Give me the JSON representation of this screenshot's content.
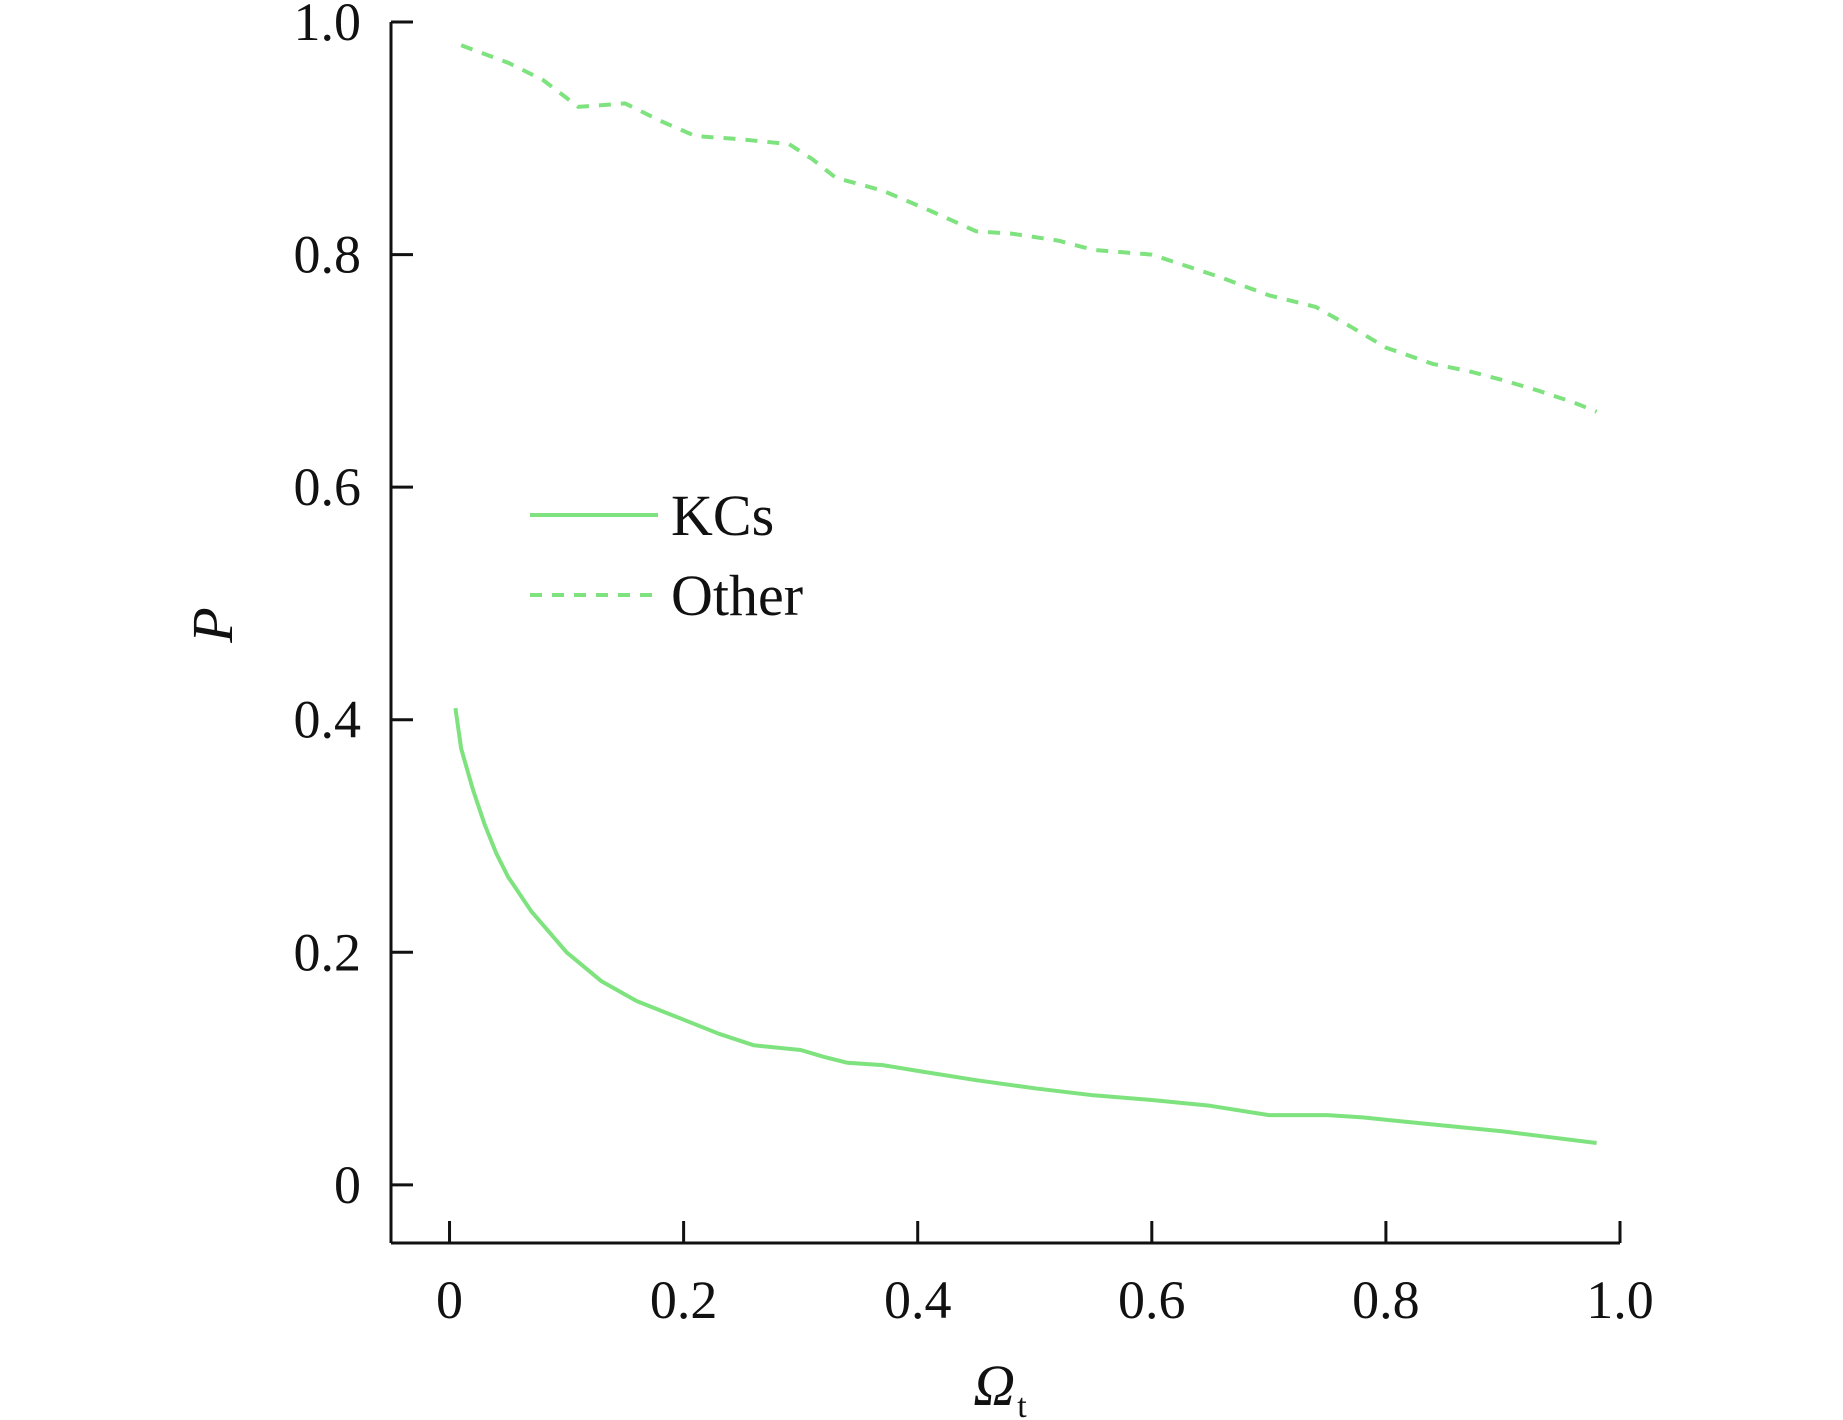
{
  "chart_data": {
    "type": "line",
    "title": "",
    "xlabel": "Ω",
    "xlabel_subscript": "t",
    "ylabel": "P",
    "xlim": [
      -0.05,
      1.0
    ],
    "ylim": [
      -0.05,
      1.0
    ],
    "x_ticks": [
      0,
      0.2,
      0.4,
      0.6,
      0.8,
      1.0
    ],
    "x_tick_labels": [
      "0",
      "0.2",
      "0.4",
      "0.6",
      "0.8",
      "1.0"
    ],
    "y_ticks": [
      0,
      0.2,
      0.4,
      0.6,
      0.8,
      1.0
    ],
    "y_tick_labels": [
      "0",
      "0.2",
      "0.4",
      "0.6",
      "0.8",
      "1.0"
    ],
    "grid": false,
    "legend_position": "center-left",
    "series": [
      {
        "name": "KCs",
        "style": "solid",
        "color": "#7ee27e",
        "x": [
          0.005,
          0.01,
          0.02,
          0.03,
          0.04,
          0.05,
          0.07,
          0.1,
          0.13,
          0.16,
          0.2,
          0.23,
          0.26,
          0.3,
          0.32,
          0.34,
          0.37,
          0.4,
          0.45,
          0.5,
          0.55,
          0.6,
          0.65,
          0.7,
          0.75,
          0.78,
          0.82,
          0.86,
          0.9,
          0.94,
          0.98
        ],
        "y": [
          0.41,
          0.375,
          0.34,
          0.31,
          0.285,
          0.265,
          0.235,
          0.2,
          0.175,
          0.158,
          0.142,
          0.13,
          0.12,
          0.116,
          0.11,
          0.105,
          0.103,
          0.098,
          0.09,
          0.083,
          0.077,
          0.073,
          0.068,
          0.06,
          0.06,
          0.058,
          0.054,
          0.05,
          0.046,
          0.041,
          0.036
        ]
      },
      {
        "name": "Other",
        "style": "dashed",
        "color": "#7ee27e",
        "x": [
          0.01,
          0.05,
          0.08,
          0.11,
          0.15,
          0.18,
          0.21,
          0.25,
          0.29,
          0.31,
          0.33,
          0.37,
          0.41,
          0.45,
          0.48,
          0.52,
          0.55,
          0.6,
          0.63,
          0.66,
          0.7,
          0.74,
          0.77,
          0.8,
          0.84,
          0.87,
          0.9,
          0.93,
          0.96,
          0.98
        ],
        "y": [
          0.98,
          0.965,
          0.95,
          0.927,
          0.93,
          0.915,
          0.902,
          0.899,
          0.895,
          0.882,
          0.866,
          0.855,
          0.838,
          0.82,
          0.818,
          0.812,
          0.804,
          0.8,
          0.79,
          0.78,
          0.765,
          0.755,
          0.738,
          0.72,
          0.706,
          0.7,
          0.692,
          0.683,
          0.673,
          0.665
        ]
      }
    ]
  }
}
